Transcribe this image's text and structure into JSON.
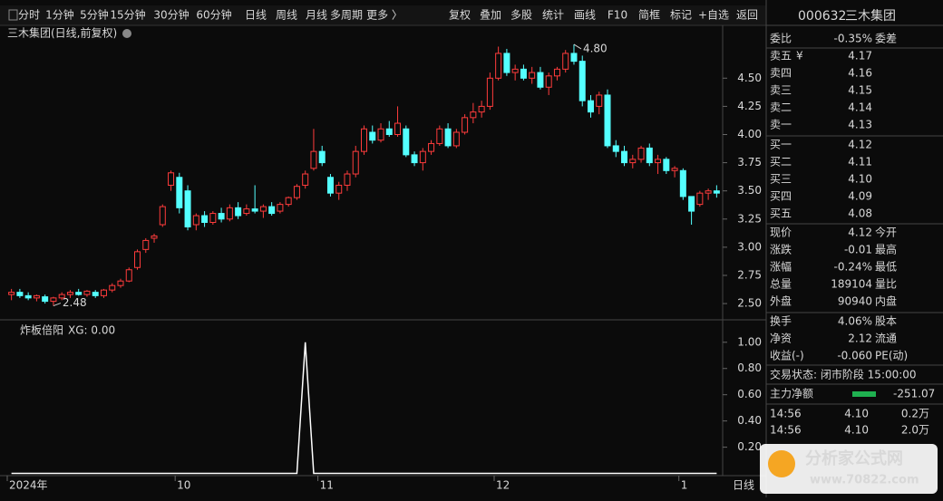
{
  "toolbar": {
    "periods": [
      "分时",
      "1分钟",
      "5分钟",
      "15分钟",
      "30分钟",
      "60分钟",
      "日线",
      "周线",
      "月线",
      "多周期",
      "更多 〉"
    ],
    "active_index": 6,
    "tools": [
      "复权",
      "叠加",
      "多股",
      "统计",
      "画线",
      "F10",
      "简框",
      "标记",
      "+自选",
      "返回"
    ]
  },
  "chart_data": [
    {
      "type": "candlestick",
      "title": "三木集团(日线,前复权)",
      "up_color": "#ff3c3c",
      "down_color": "#54ffff",
      "categories": [
        "2024年",
        null,
        null,
        null,
        null,
        null,
        null,
        null,
        null,
        null,
        null,
        null,
        null,
        null,
        null,
        null,
        null,
        null,
        null,
        null,
        "10",
        null,
        null,
        null,
        null,
        null,
        null,
        null,
        null,
        null,
        null,
        null,
        null,
        null,
        null,
        null,
        null,
        "11",
        null,
        null,
        null,
        null,
        null,
        null,
        null,
        null,
        null,
        null,
        null,
        null,
        null,
        null,
        null,
        null,
        null,
        null,
        null,
        null,
        "12",
        null,
        null,
        null,
        null,
        null,
        null,
        null,
        null,
        null,
        null,
        null,
        null,
        null,
        null,
        null,
        null,
        null,
        null,
        null,
        null,
        null,
        "1",
        null,
        null,
        null,
        null
      ],
      "open": [
        2.58,
        2.6,
        2.57,
        2.55,
        2.56,
        2.52,
        2.55,
        2.58,
        2.6,
        2.58,
        2.6,
        2.57,
        2.62,
        2.66,
        2.7,
        2.82,
        2.98,
        3.08,
        3.2,
        3.55,
        3.62,
        3.5,
        3.2,
        3.28,
        3.22,
        3.3,
        3.25,
        3.35,
        3.3,
        3.34,
        3.32,
        3.36,
        3.32,
        3.38,
        3.44,
        3.55,
        3.7,
        3.85,
        3.62,
        3.48,
        3.55,
        3.65,
        3.85,
        4.02,
        3.95,
        4.05,
        4.0,
        4.05,
        3.82,
        3.75,
        3.85,
        3.92,
        4.05,
        3.9,
        4.02,
        4.15,
        4.2,
        4.25,
        4.5,
        4.72,
        4.55,
        4.58,
        4.5,
        4.55,
        4.42,
        4.52,
        4.58,
        4.72,
        4.65,
        4.3,
        4.25,
        4.35,
        3.9,
        3.85,
        3.75,
        3.78,
        3.88,
        3.75,
        3.78,
        3.68,
        3.68,
        3.45,
        3.38,
        3.48,
        3.5
      ],
      "high": [
        2.63,
        2.63,
        2.6,
        2.58,
        2.58,
        2.56,
        2.6,
        2.62,
        2.63,
        2.62,
        2.62,
        2.63,
        2.68,
        2.72,
        2.82,
        2.98,
        3.08,
        3.12,
        3.38,
        3.68,
        3.66,
        3.55,
        3.3,
        3.32,
        3.32,
        3.35,
        3.38,
        3.4,
        3.38,
        3.55,
        3.38,
        3.4,
        3.4,
        3.45,
        3.56,
        3.68,
        4.05,
        3.9,
        3.65,
        3.58,
        3.68,
        3.9,
        4.08,
        4.08,
        4.1,
        4.12,
        4.25,
        4.08,
        3.85,
        3.88,
        3.95,
        4.08,
        4.1,
        4.05,
        4.18,
        4.28,
        4.3,
        4.55,
        4.78,
        4.76,
        4.62,
        4.62,
        4.6,
        4.6,
        4.55,
        4.6,
        4.75,
        4.8,
        4.7,
        4.35,
        4.38,
        4.4,
        3.95,
        3.9,
        3.82,
        3.9,
        3.92,
        3.82,
        3.8,
        3.72,
        3.7,
        3.45,
        3.5,
        3.52,
        3.55
      ],
      "low": [
        2.53,
        2.55,
        2.53,
        2.52,
        2.5,
        2.48,
        2.53,
        2.55,
        2.57,
        2.56,
        2.55,
        2.55,
        2.6,
        2.64,
        2.69,
        2.8,
        2.95,
        3.04,
        3.18,
        3.5,
        3.3,
        3.15,
        3.15,
        3.18,
        3.2,
        3.22,
        3.23,
        3.25,
        3.28,
        3.3,
        3.26,
        3.28,
        3.3,
        3.36,
        3.42,
        3.52,
        3.68,
        3.72,
        3.45,
        3.42,
        3.5,
        3.62,
        3.82,
        3.92,
        3.93,
        3.98,
        3.98,
        3.8,
        3.72,
        3.68,
        3.82,
        3.9,
        3.88,
        3.88,
        4.0,
        4.1,
        4.15,
        4.22,
        4.48,
        4.52,
        4.48,
        4.48,
        4.45,
        4.4,
        4.35,
        4.48,
        4.55,
        4.62,
        4.25,
        4.15,
        4.18,
        3.88,
        3.8,
        3.72,
        3.7,
        3.75,
        3.72,
        3.65,
        3.65,
        3.62,
        3.42,
        3.2,
        3.36,
        3.42,
        3.44
      ],
      "close": [
        2.6,
        2.57,
        2.55,
        2.57,
        2.52,
        2.55,
        2.58,
        2.6,
        2.58,
        2.61,
        2.57,
        2.62,
        2.66,
        2.7,
        2.8,
        2.96,
        3.06,
        3.1,
        3.36,
        3.66,
        3.35,
        3.18,
        3.28,
        3.22,
        3.3,
        3.25,
        3.35,
        3.28,
        3.34,
        3.32,
        3.36,
        3.3,
        3.38,
        3.44,
        3.54,
        3.65,
        3.85,
        3.75,
        3.48,
        3.55,
        3.65,
        3.85,
        4.05,
        3.95,
        4.05,
        4.0,
        4.1,
        3.82,
        3.75,
        3.85,
        3.92,
        4.05,
        3.9,
        4.02,
        4.15,
        4.2,
        4.25,
        4.5,
        4.72,
        4.55,
        4.58,
        4.5,
        4.55,
        4.42,
        4.52,
        4.58,
        4.72,
        4.65,
        4.3,
        4.2,
        4.35,
        3.9,
        3.85,
        3.75,
        3.78,
        3.88,
        3.75,
        3.78,
        3.68,
        3.7,
        3.45,
        3.32,
        3.48,
        3.5,
        3.48
      ],
      "annotations": [
        {
          "label": "4.80",
          "value": 4.8,
          "index": 67
        },
        {
          "label": "2.48",
          "value": 2.48,
          "index": 5
        }
      ],
      "ylim": [
        2.38,
        4.84
      ],
      "yticks": [
        {
          "value": 2.5,
          "label": "2.50"
        },
        {
          "value": 2.75,
          "label": "2.75"
        },
        {
          "value": 3,
          "label": "3.00"
        },
        {
          "value": 3.25,
          "label": "3.25"
        },
        {
          "value": 3.5,
          "label": "3.50"
        },
        {
          "value": 3.75,
          "label": "3.75"
        },
        {
          "value": 4,
          "label": "4.00"
        },
        {
          "value": 4.25,
          "label": "4.25"
        },
        {
          "value": 4.5,
          "label": "4.50"
        }
      ]
    },
    {
      "type": "line",
      "title": "炸板倍阳",
      "legend_text": "XG: 0.00",
      "series": [
        {
          "name": "XG",
          "color": "#ffffff",
          "values": [
            0,
            0,
            0,
            0,
            0,
            0,
            0,
            0,
            0,
            0,
            0,
            0,
            0,
            0,
            0,
            0,
            0,
            0,
            0,
            0,
            0,
            0,
            0,
            0,
            0,
            0,
            0,
            0,
            0,
            0,
            0,
            0,
            0,
            0,
            0,
            1,
            0,
            0,
            0,
            0,
            0,
            0,
            0,
            0,
            0,
            0,
            0,
            0,
            0,
            0,
            0,
            0,
            0,
            0,
            0,
            0,
            0,
            0,
            0,
            0,
            0,
            0,
            0,
            0,
            0,
            0,
            0,
            0,
            0,
            0,
            0,
            0,
            0,
            0,
            0,
            0,
            0,
            0,
            0,
            0,
            0,
            0,
            0,
            0,
            0
          ]
        }
      ],
      "ylim": [
        -0.01,
        1.04
      ],
      "yticks": [
        {
          "value": 0.2,
          "label": "0.20"
        },
        {
          "value": 0.4,
          "label": "0.40"
        },
        {
          "value": 0.6,
          "label": "0.60"
        },
        {
          "value": 0.8,
          "label": "0.80"
        },
        {
          "value": 1,
          "label": "1.00"
        }
      ]
    }
  ],
  "bottom_tab": "日线",
  "quote": {
    "code": "000632",
    "name": "三木集团",
    "weibi": {
      "label": "委比",
      "value": "-0.35%",
      "extra": "委差"
    },
    "ask_icon": "¥",
    "asks": [
      {
        "label": "卖五",
        "value": "4.17"
      },
      {
        "label": "卖四",
        "value": "4.16"
      },
      {
        "label": "卖三",
        "value": "4.15"
      },
      {
        "label": "卖二",
        "value": "4.14"
      },
      {
        "label": "卖一",
        "value": "4.13"
      }
    ],
    "bids": [
      {
        "label": "买一",
        "value": "4.12"
      },
      {
        "label": "买二",
        "value": "4.11"
      },
      {
        "label": "买三",
        "value": "4.10"
      },
      {
        "label": "买四",
        "value": "4.09"
      },
      {
        "label": "买五",
        "value": "4.08"
      }
    ],
    "stats": [
      {
        "label": "现价",
        "value": "4.12",
        "label2": "今开"
      },
      {
        "label": "涨跌",
        "value": "-0.01",
        "label2": "最高"
      },
      {
        "label": "涨幅",
        "value": "-0.24%",
        "label2": "最低"
      },
      {
        "label": "总量",
        "value": "189104",
        "label2": "量比"
      },
      {
        "label": "外盘",
        "value": "90940",
        "label2": "内盘"
      }
    ],
    "stats2": [
      {
        "label": "换手",
        "value": "4.06%",
        "label2": "股本"
      },
      {
        "label": "净资",
        "value": "2.12",
        "label2": "流通"
      },
      {
        "label": "收益(-)",
        "value": "-0.060",
        "label2": "PE(动)"
      }
    ],
    "status": "交易状态: 闭市阶段 15:00:00",
    "main_flow": {
      "label": "主力净额",
      "value": "-251.07"
    },
    "ticks": [
      {
        "time": "14:56",
        "price": "4.10",
        "vol": "0.2万"
      },
      {
        "time": "14:56",
        "price": "4.10",
        "vol": "2.0万"
      }
    ]
  },
  "watermark": {
    "title": "分析家公式网",
    "url": "www.70822.com"
  }
}
